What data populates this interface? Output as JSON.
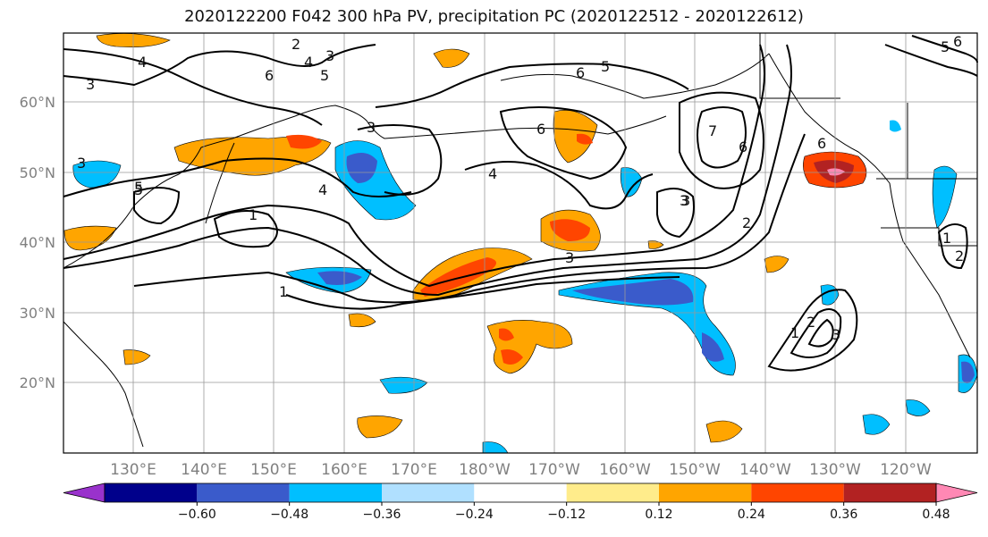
{
  "title": "2020122200 F042 300 hPa PV, precipitation PC (2020122512 - 2020122612)",
  "latitude_labels": [
    "60°N",
    "50°N",
    "40°N",
    "30°N",
    "20°N"
  ],
  "longitude_labels": [
    "130°E",
    "140°E",
    "150°E",
    "160°E",
    "170°E",
    "180°W",
    "170°W",
    "160°W",
    "150°W",
    "140°W",
    "130°W",
    "120°W"
  ],
  "colorbar": {
    "colors": [
      "#9932CC",
      "#00008B",
      "#3A5BCB",
      "#00BFFF",
      "#B0E0FF",
      "#FFFFFF",
      "#FFEC8B",
      "#FFA500",
      "#FF4500",
      "#B22222",
      "#FF88B4"
    ],
    "tick_labels": [
      "−0.60",
      "−0.48",
      "−0.36",
      "−0.24",
      "−0.12",
      "0.12",
      "0.24",
      "0.36",
      "0.48",
      "0.60"
    ]
  },
  "pv_contour_labels": [
    "2",
    "3",
    "4",
    "6",
    "5",
    "3",
    "4",
    "5",
    "6",
    "5",
    "6",
    "4",
    "6",
    "7",
    "6",
    "3",
    "5",
    "4",
    "3",
    "3",
    "2",
    "1",
    "1",
    "3",
    "2",
    "1",
    "3",
    "2",
    "1",
    "5",
    "6",
    "3"
  ],
  "map_features": {
    "projection": "cylindrical",
    "domain": "Western Pacific – North Pacific – western North America",
    "precip_pc_anomalies": [
      "Kamchatka/Sea of Okhotsk mixed",
      "positive band near 180°W 35°N",
      "negative band near 150°W 30°N",
      "strong positive off Pacific NW coast 50°N 130°W"
    ]
  }
}
